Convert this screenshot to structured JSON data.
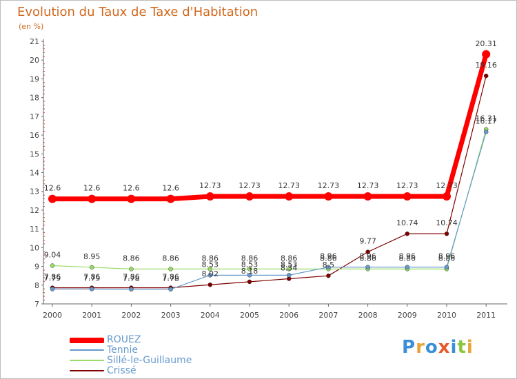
{
  "title": "Evolution du Taux de Taxe d'Habitation",
  "unit": "(en %)",
  "logo": "Proxiti",
  "chart_data": {
    "type": "line",
    "title": "Evolution du Taux de Taxe d'Habitation",
    "ylabel": "(en %)",
    "xlabel": "",
    "x": [
      "2000",
      "2001",
      "2002",
      "2003",
      "2004",
      "2005",
      "2006",
      "2007",
      "2008",
      "2009",
      "2010",
      "2011"
    ],
    "ylim": [
      7,
      21
    ],
    "yticks": [
      7,
      8,
      9,
      10,
      11,
      12,
      13,
      14,
      15,
      16,
      17,
      18,
      19,
      20,
      21
    ],
    "grid": false,
    "legend_position": "bottom-left",
    "series": [
      {
        "name": "ROUEZ",
        "color": "#ff0000",
        "values": [
          12.6,
          12.6,
          12.6,
          12.6,
          12.73,
          12.73,
          12.73,
          12.73,
          12.73,
          12.73,
          12.73,
          20.31
        ],
        "labels": [
          "12.6",
          "12.6",
          "12.6",
          "12.6",
          "12.73",
          "12.73",
          "12.73",
          "12.73",
          "12.73",
          "12.73",
          "12.73",
          "20.31"
        ]
      },
      {
        "name": "Tennie",
        "color": "#6699cc",
        "values": [
          7.79,
          7.79,
          7.78,
          7.78,
          8.53,
          8.53,
          8.53,
          8.96,
          8.96,
          8.96,
          8.96,
          16.17
        ],
        "labels": [
          "7.79",
          "7.79",
          "7.78",
          "7.78",
          "8.53",
          "8.53",
          "8.53",
          "8.96",
          "8.96",
          "8.96",
          "8.96",
          "16.17"
        ]
      },
      {
        "name": "Sillé-le-Guillaume",
        "color": "#99dd66",
        "values": [
          9.04,
          8.95,
          8.86,
          8.86,
          8.86,
          8.86,
          8.86,
          8.86,
          8.86,
          8.86,
          8.86,
          16.31
        ],
        "labels": [
          "9.04",
          "8.95",
          "8.86",
          "8.86",
          "8.86",
          "8.86",
          "8.86",
          "8.86",
          "8.86",
          "8.86",
          "8.86",
          "16.31"
        ]
      },
      {
        "name": "Crissé",
        "color": "#800000",
        "values": [
          7.86,
          7.86,
          7.86,
          7.86,
          8.02,
          8.18,
          8.34,
          8.5,
          9.77,
          10.74,
          10.74,
          19.16
        ],
        "labels": [
          "7.86",
          "7.86",
          "7.86",
          "7.86",
          "8.02",
          "8.18",
          "8.34",
          "8.5",
          "9.77",
          "10.74",
          "10.74",
          "19.16"
        ]
      }
    ]
  }
}
